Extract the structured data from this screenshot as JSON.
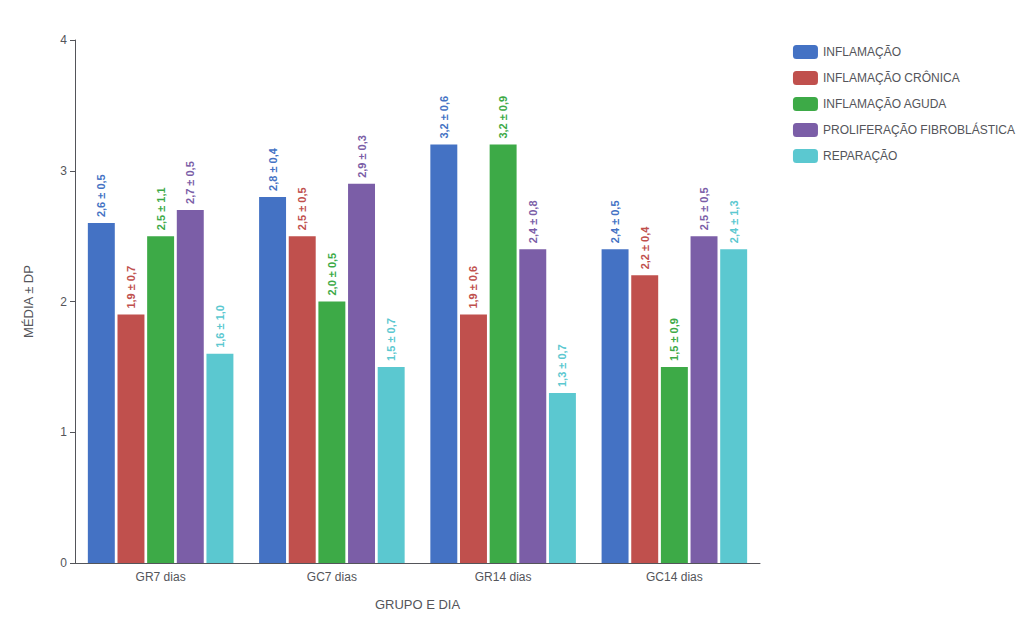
{
  "chart_data": {
    "type": "bar",
    "xlabel": "GRUPO E DIA",
    "ylabel": "MÉDIA ± DP",
    "categories": [
      "GR7 dias",
      "GC7 dias",
      "GR14 dias",
      "GC14 dias"
    ],
    "series": [
      {
        "name": "INFLAMAÇÃO",
        "color": "#4472C4",
        "values": [
          2.6,
          2.8,
          3.2,
          2.4
        ],
        "value_labels": [
          "2,6 ± 0,5",
          "2,8 ± 0,4",
          "3,2 ± 0,6",
          "2,4 ± 0,5"
        ]
      },
      {
        "name": "INFLAMAÇÃO CRÔNICA",
        "color": "#C0504D",
        "values": [
          1.9,
          2.5,
          1.9,
          2.2
        ],
        "value_labels": [
          "1,9 ± 0,7",
          "2,5 ± 0,5",
          "1,9 ± 0,6",
          "2,2 ± 0,4"
        ]
      },
      {
        "name": "INFLAMAÇÃO AGUDA",
        "color": "#3DAA47",
        "values": [
          2.5,
          2.0,
          3.2,
          1.5
        ],
        "value_labels": [
          "2,5 ± 1,1",
          "2,0 ± 0,5",
          "3,2 ± 0,9",
          "1,5 ± 0,9"
        ]
      },
      {
        "name": "PROLIFERAÇÃO FIBROBLÁSTICA",
        "color": "#7B5EA7",
        "values": [
          2.7,
          2.9,
          2.4,
          2.5
        ],
        "value_labels": [
          "2,7 ± 0,5",
          "2,9 ± 0,3",
          "2,4 ± 0,8",
          "2,5 ± 0,5"
        ]
      },
      {
        "name": "REPARAÇÃO",
        "color": "#5BC8D0",
        "values": [
          1.6,
          1.5,
          1.3,
          2.4
        ],
        "value_labels": [
          "1,6 ± 1,0",
          "1,5 ± 0,7",
          "1,3 ± 0,7",
          "2,4 ± 1,3"
        ]
      }
    ],
    "ylim": [
      0,
      4
    ],
    "yticks": [
      0,
      1,
      2,
      3,
      4
    ],
    "grid": false,
    "legend": "right",
    "data_labels": true
  }
}
